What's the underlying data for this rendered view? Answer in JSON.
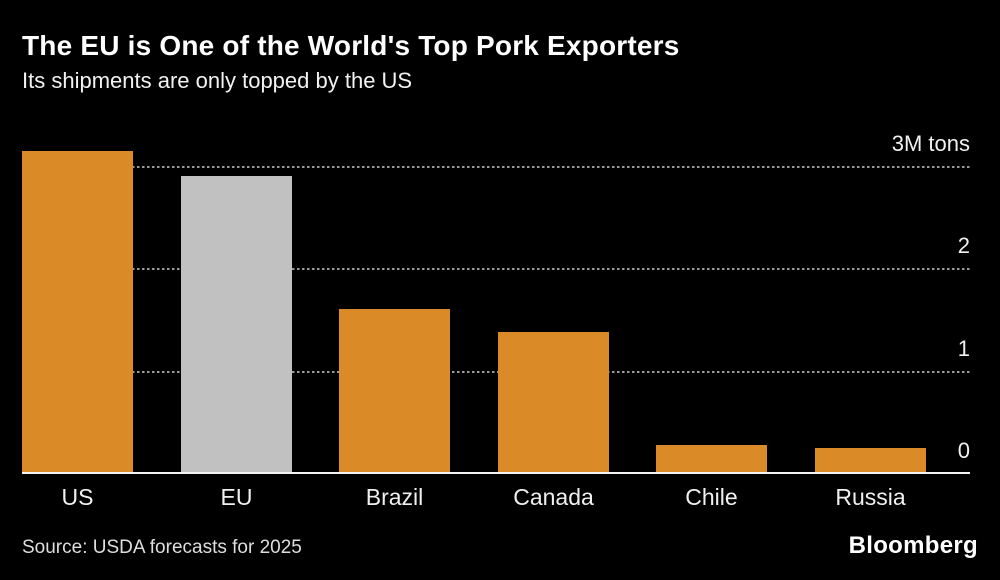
{
  "header": {
    "title": "The EU is One of the World's Top Pork Exporters",
    "subtitle": "Its shipments are only topped by the US"
  },
  "chart_data": {
    "type": "bar",
    "title": "The EU is One of the World's Top Pork Exporters",
    "subtitle": "Its shipments are only topped by the US",
    "categories": [
      "US",
      "EU",
      "Brazil",
      "Canada",
      "Chile",
      "Russia"
    ],
    "values": [
      3.15,
      2.9,
      1.6,
      1.38,
      0.27,
      0.24
    ],
    "unit": "M tons",
    "ylabel": "",
    "xlabel": "",
    "ylim": [
      0,
      3.25
    ],
    "grid": "horizontal-dotted",
    "legend": "none",
    "y_ticks": [
      {
        "value": 3,
        "label": "3M tons"
      },
      {
        "value": 2,
        "label": "2"
      },
      {
        "value": 1,
        "label": "1"
      },
      {
        "value": 0,
        "label": "0"
      }
    ],
    "highlighted_category": "EU",
    "bar_color_default": "#DB8A28",
    "bar_color_highlight": "#C1C1C1"
  },
  "footer": {
    "source": "Source: USDA forecasts for 2025",
    "brand": "Bloomberg"
  },
  "colors": {
    "background": "#000000",
    "bar_orange": "#DB8A28",
    "bar_gray": "#C1C1C1",
    "gridline": "#9A9A9A",
    "baseline": "#F2F2F2",
    "title_text": "#FFFFFF",
    "label_text": "#F0F0F0",
    "source_text": "#DEDEDE"
  }
}
